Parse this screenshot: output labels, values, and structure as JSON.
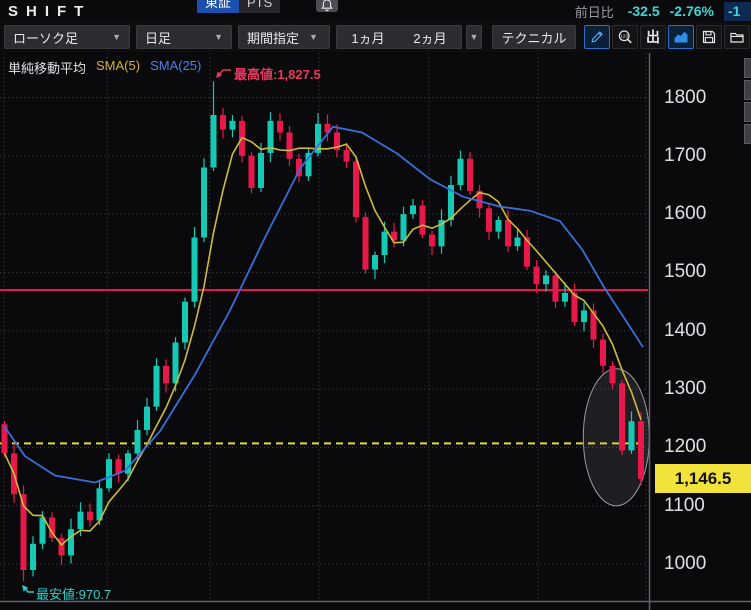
{
  "header": {
    "title": "SHIFT",
    "market_primary": "東証",
    "market_secondary": "PTS",
    "prev_day_label": "前日比",
    "prev_day_change": "-32.5",
    "prev_day_change_pct": "-2.76%",
    "clipped_change": "-1"
  },
  "toolbar": {
    "chart_type_value": "ローソク足",
    "timeframe_value": "日足",
    "period_button": "期間指定",
    "period_1m": "1ヵ月",
    "period_2m": "2ヵ月",
    "technical_button": "テクニカル",
    "export_glyph": "出"
  },
  "legend": {
    "title": "単純移動平均",
    "sma5_label": "SMA(5)",
    "sma25_label": "SMA(25)"
  },
  "chart_data": {
    "type": "candlestick",
    "title": "SHIFT daily candlestick chart with SMA(5)/SMA(25)",
    "ylim": [
      930,
      1875
    ],
    "y_ticks": [
      1800,
      1700,
      1600,
      1500,
      1400,
      1300,
      1200,
      1100,
      1000
    ],
    "grid": true,
    "first_open": 1240,
    "closes": [
      1190,
      1120,
      990,
      1035,
      1080,
      1045,
      1015,
      1060,
      1090,
      1075,
      1130,
      1180,
      1155,
      1190,
      1230,
      1270,
      1340,
      1310,
      1380,
      1450,
      1560,
      1680,
      1770,
      1745,
      1760,
      1700,
      1645,
      1705,
      1760,
      1740,
      1695,
      1665,
      1705,
      1755,
      1740,
      1710,
      1690,
      1595,
      1505,
      1530,
      1570,
      1555,
      1600,
      1615,
      1565,
      1545,
      1590,
      1650,
      1695,
      1640,
      1610,
      1570,
      1590,
      1545,
      1560,
      1510,
      1480,
      1495,
      1450,
      1465,
      1415,
      1435,
      1385,
      1340,
      1310,
      1195,
      1245,
      1146.5
    ],
    "special_points": {
      "low_index": 2,
      "low_value": 970.7,
      "high_index": 22,
      "high_value": 1827.5,
      "last_low": 1135
    },
    "sma5_window": 5,
    "sma25_points": [
      [
        4,
        1237
      ],
      [
        25,
        1185
      ],
      [
        55,
        1152
      ],
      [
        95,
        1140
      ],
      [
        125,
        1160
      ],
      [
        160,
        1228
      ],
      [
        195,
        1325
      ],
      [
        230,
        1435
      ],
      [
        265,
        1560
      ],
      [
        300,
        1678
      ],
      [
        333,
        1750
      ],
      [
        362,
        1740
      ],
      [
        397,
        1704
      ],
      [
        430,
        1660
      ],
      [
        463,
        1630
      ],
      [
        500,
        1613
      ],
      [
        530,
        1606
      ],
      [
        560,
        1588
      ],
      [
        582,
        1540
      ],
      [
        605,
        1472
      ],
      [
        625,
        1420
      ],
      [
        643,
        1372
      ]
    ],
    "red_hline_price": 1470,
    "yellow_dashed_hline_price": 1207,
    "high_annotation": "最高値:1,827.5",
    "low_annotation": "最安値:970.7",
    "current_price_label": "1,146.5",
    "current_price": 1146.5,
    "highlight_ellipse": {
      "center_index": 64.4,
      "top_price": 1335,
      "bottom_price": 1100
    }
  },
  "colors": {
    "up": "#16c9b5",
    "down": "#e8194a",
    "sma5": "#cdbb3d",
    "sma25": "#3a6fd8",
    "hline_red": "#e8174f",
    "hline_yellow": "#e4da3a",
    "accent_cyan": "#3fd6d6",
    "tag_bg": "#f2e33c",
    "annotation_high": "#e83a5e",
    "annotation_low": "#2bd0c8",
    "grid": "#3c3c44",
    "boundary": "#63636b"
  }
}
